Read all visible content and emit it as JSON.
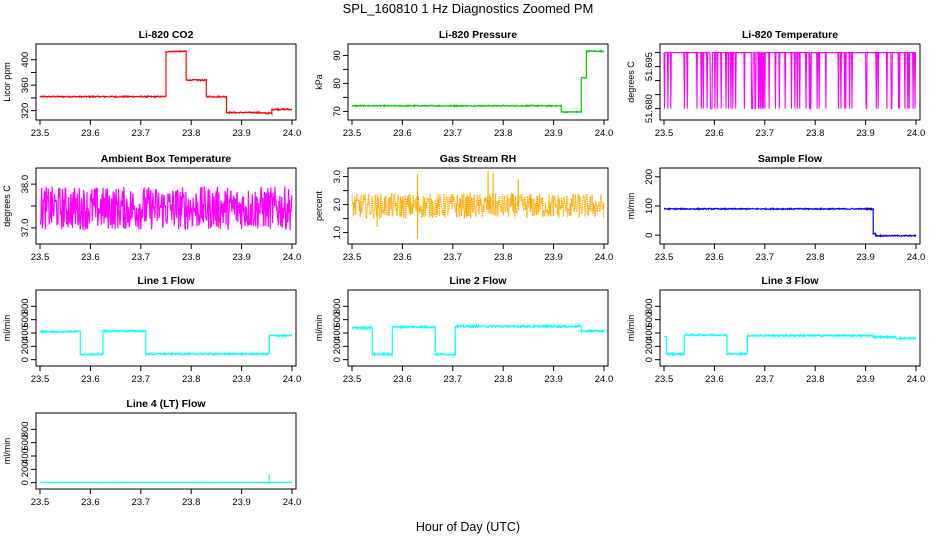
{
  "figure": {
    "title": "SPL_160810  1 Hz Diagnostics Zoomed PM",
    "xlabel": "Hour of Day (UTC)"
  },
  "chart_data": [
    {
      "type": "line",
      "title": "Li-820 CO2",
      "ylabel": "Licor ppm",
      "color": "#ff0000",
      "xlim": [
        23.5,
        24.0
      ],
      "ylim": [
        310,
        420
      ],
      "xticks": [
        "23.5",
        "23.6",
        "23.7",
        "23.8",
        "23.9",
        "24.0"
      ],
      "yticks": [
        320,
        340,
        360,
        380,
        400
      ],
      "ytick_labels": [
        "320",
        "",
        "360",
        "",
        "400"
      ],
      "noise": 1,
      "segments": [
        {
          "x0": 23.5,
          "x1": 23.75,
          "y": 342
        },
        {
          "x0": 23.75,
          "x1": 23.79,
          "y": 413
        },
        {
          "x0": 23.79,
          "x1": 23.83,
          "y": 368
        },
        {
          "x0": 23.83,
          "x1": 23.87,
          "y": 342
        },
        {
          "x0": 23.87,
          "x1": 23.94,
          "y": 317
        },
        {
          "x0": 23.94,
          "x1": 23.96,
          "y": 316
        },
        {
          "x0": 23.96,
          "x1": 24.0,
          "y": 322
        }
      ]
    },
    {
      "type": "line",
      "title": "Li-820 Pressure",
      "ylabel": "kPa",
      "color": "#00cc00",
      "xlim": [
        23.5,
        24.0
      ],
      "ylim": [
        68,
        93
      ],
      "xticks": [
        "23.5",
        "23.6",
        "23.7",
        "23.8",
        "23.9",
        "24.0"
      ],
      "yticks": [
        70,
        75,
        80,
        85,
        90
      ],
      "ytick_labels": [
        "70",
        "",
        "80",
        "",
        "90"
      ],
      "noise": 0.2,
      "segments": [
        {
          "x0": 23.5,
          "x1": 23.915,
          "y": 72
        },
        {
          "x0": 23.915,
          "x1": 23.955,
          "y": 69.8
        },
        {
          "x0": 23.955,
          "x1": 23.965,
          "y": 82
        },
        {
          "x0": 23.965,
          "x1": 24.0,
          "y": 91.5
        }
      ]
    },
    {
      "type": "line",
      "title": "Li-820 Temperature",
      "ylabel": "degrees C",
      "color": "#ff00ff",
      "xlim": [
        23.5,
        24.0
      ],
      "ylim": [
        51.677,
        51.702
      ],
      "xticks": [
        "23.5",
        "23.6",
        "23.7",
        "23.8",
        "23.9",
        "24.0"
      ],
      "yticks": [
        51.68,
        51.685,
        51.69,
        51.695,
        51.7
      ],
      "ytick_labels": [
        "51.680",
        "",
        "",
        "51.695",
        ""
      ],
      "noise": 0,
      "toggle": {
        "high": 51.7,
        "low": 51.68
      },
      "segments": [
        {
          "x0": 23.5,
          "x1": 24.0,
          "y": 51.7
        }
      ]
    },
    {
      "type": "line",
      "title": "Ambient Box Temperature",
      "ylabel": "degrees C",
      "color": "#ff00ff",
      "xlim": [
        23.5,
        24.0
      ],
      "ylim": [
        36.7,
        38.3
      ],
      "xticks": [
        "23.5",
        "23.6",
        "23.7",
        "23.8",
        "23.9",
        "24.0"
      ],
      "yticks": [
        37.0,
        37.5,
        38.0
      ],
      "ytick_labels": [
        "37.0",
        "",
        "38.0"
      ],
      "noise": 0.5,
      "segments": [
        {
          "x0": 23.5,
          "x1": 24.0,
          "y": 37.45
        }
      ]
    },
    {
      "type": "line",
      "title": "Gas Stream RH",
      "ylabel": "percent",
      "color": "#ffaa00",
      "dotted": true,
      "xlim": [
        23.5,
        24.0
      ],
      "ylim": [
        0.7,
        3.2
      ],
      "xticks": [
        "23.5",
        "23.6",
        "23.7",
        "23.8",
        "23.9",
        "24.0"
      ],
      "yticks": [
        1.0,
        1.5,
        2.0,
        2.5,
        3.0
      ],
      "ytick_labels": [
        "1.0",
        "",
        "2.0",
        "",
        "3.0"
      ],
      "noise": 0.45,
      "spikes": [
        {
          "x": 23.63,
          "y": 3.1
        },
        {
          "x": 23.77,
          "y": 3.2
        },
        {
          "x": 23.78,
          "y": 3.15
        },
        {
          "x": 23.83,
          "y": 2.9
        },
        {
          "x": 23.55,
          "y": 1.2
        },
        {
          "x": 23.63,
          "y": 0.8
        }
      ],
      "segments": [
        {
          "x0": 23.5,
          "x1": 24.0,
          "y": 1.95
        }
      ]
    },
    {
      "type": "line",
      "title": "Sample Flow",
      "ylabel": "ml/min",
      "color": "#0000ff",
      "xlim": [
        23.5,
        24.0
      ],
      "ylim": [
        -20,
        220
      ],
      "xticks": [
        "23.5",
        "23.6",
        "23.7",
        "23.8",
        "23.9",
        "24.0"
      ],
      "yticks": [
        0,
        100,
        200
      ],
      "ytick_labels": [
        "0",
        "100",
        "200"
      ],
      "noise": 2,
      "segments": [
        {
          "x0": 23.5,
          "x1": 23.915,
          "y": 90
        },
        {
          "x0": 23.915,
          "x1": 23.92,
          "y": 5
        },
        {
          "x0": 23.92,
          "x1": 24.0,
          "y": -2
        }
      ]
    },
    {
      "type": "line",
      "title": "Line 1 Flow",
      "ylabel": "ml/min",
      "color": "#00ffff",
      "xlim": [
        23.5,
        24.0
      ],
      "ylim": [
        -50,
        1000
      ],
      "xticks": [
        "23.5",
        "23.6",
        "23.7",
        "23.8",
        "23.9",
        "24.0"
      ],
      "yticks": [
        0,
        200,
        400,
        600,
        800
      ],
      "ytick_labels": [
        "0",
        "200",
        "400",
        "600",
        "800"
      ],
      "noise": 12,
      "segments": [
        {
          "x0": 23.5,
          "x1": 23.58,
          "y": 420
        },
        {
          "x0": 23.58,
          "x1": 23.625,
          "y": 80
        },
        {
          "x0": 23.625,
          "x1": 23.71,
          "y": 430
        },
        {
          "x0": 23.71,
          "x1": 23.955,
          "y": 85
        },
        {
          "x0": 23.955,
          "x1": 24.0,
          "y": 360
        }
      ]
    },
    {
      "type": "line",
      "title": "Line 2 Flow",
      "ylabel": "ml/min",
      "color": "#00ffff",
      "xlim": [
        23.5,
        24.0
      ],
      "ylim": [
        -50,
        1000
      ],
      "xticks": [
        "23.5",
        "23.6",
        "23.7",
        "23.8",
        "23.9",
        "24.0"
      ],
      "yticks": [
        0,
        200,
        400,
        600,
        800
      ],
      "ytick_labels": [
        "0",
        "200",
        "400",
        "600",
        "800"
      ],
      "noise": 14,
      "segments": [
        {
          "x0": 23.5,
          "x1": 23.54,
          "y": 480
        },
        {
          "x0": 23.54,
          "x1": 23.58,
          "y": 80
        },
        {
          "x0": 23.58,
          "x1": 23.665,
          "y": 490
        },
        {
          "x0": 23.665,
          "x1": 23.705,
          "y": 80
        },
        {
          "x0": 23.705,
          "x1": 23.955,
          "y": 500
        },
        {
          "x0": 23.955,
          "x1": 24.0,
          "y": 430
        }
      ]
    },
    {
      "type": "line",
      "title": "Line 3 Flow",
      "ylabel": "ml/min",
      "color": "#00ffff",
      "xlim": [
        23.5,
        24.0
      ],
      "ylim": [
        -50,
        1000
      ],
      "xticks": [
        "23.5",
        "23.6",
        "23.7",
        "23.8",
        "23.9",
        "24.0"
      ],
      "yticks": [
        0,
        200,
        400,
        600,
        800
      ],
      "ytick_labels": [
        "0",
        "200",
        "400",
        "600",
        "800"
      ],
      "noise": 12,
      "segments": [
        {
          "x0": 23.5,
          "x1": 23.505,
          "y": 340
        },
        {
          "x0": 23.505,
          "x1": 23.54,
          "y": 85
        },
        {
          "x0": 23.54,
          "x1": 23.625,
          "y": 370
        },
        {
          "x0": 23.625,
          "x1": 23.665,
          "y": 85
        },
        {
          "x0": 23.665,
          "x1": 23.915,
          "y": 360
        },
        {
          "x0": 23.915,
          "x1": 23.96,
          "y": 340
        },
        {
          "x0": 23.96,
          "x1": 24.0,
          "y": 320
        }
      ]
    },
    {
      "type": "line",
      "title": "Line 4 (LT) Flow",
      "ylabel": "ml/min",
      "color": "#00ffff",
      "xlim": [
        23.5,
        24.0
      ],
      "ylim": [
        -50,
        1000
      ],
      "xticks": [
        "23.5",
        "23.6",
        "23.7",
        "23.8",
        "23.9",
        "24.0"
      ],
      "yticks": [
        0,
        200,
        400,
        600,
        800
      ],
      "ytick_labels": [
        "0",
        "200",
        "400",
        "600",
        "800"
      ],
      "noise": 2,
      "spikes": [
        {
          "x": 23.955,
          "y": 120
        }
      ],
      "segments": [
        {
          "x0": 23.5,
          "x1": 24.0,
          "y": 5
        }
      ]
    }
  ]
}
